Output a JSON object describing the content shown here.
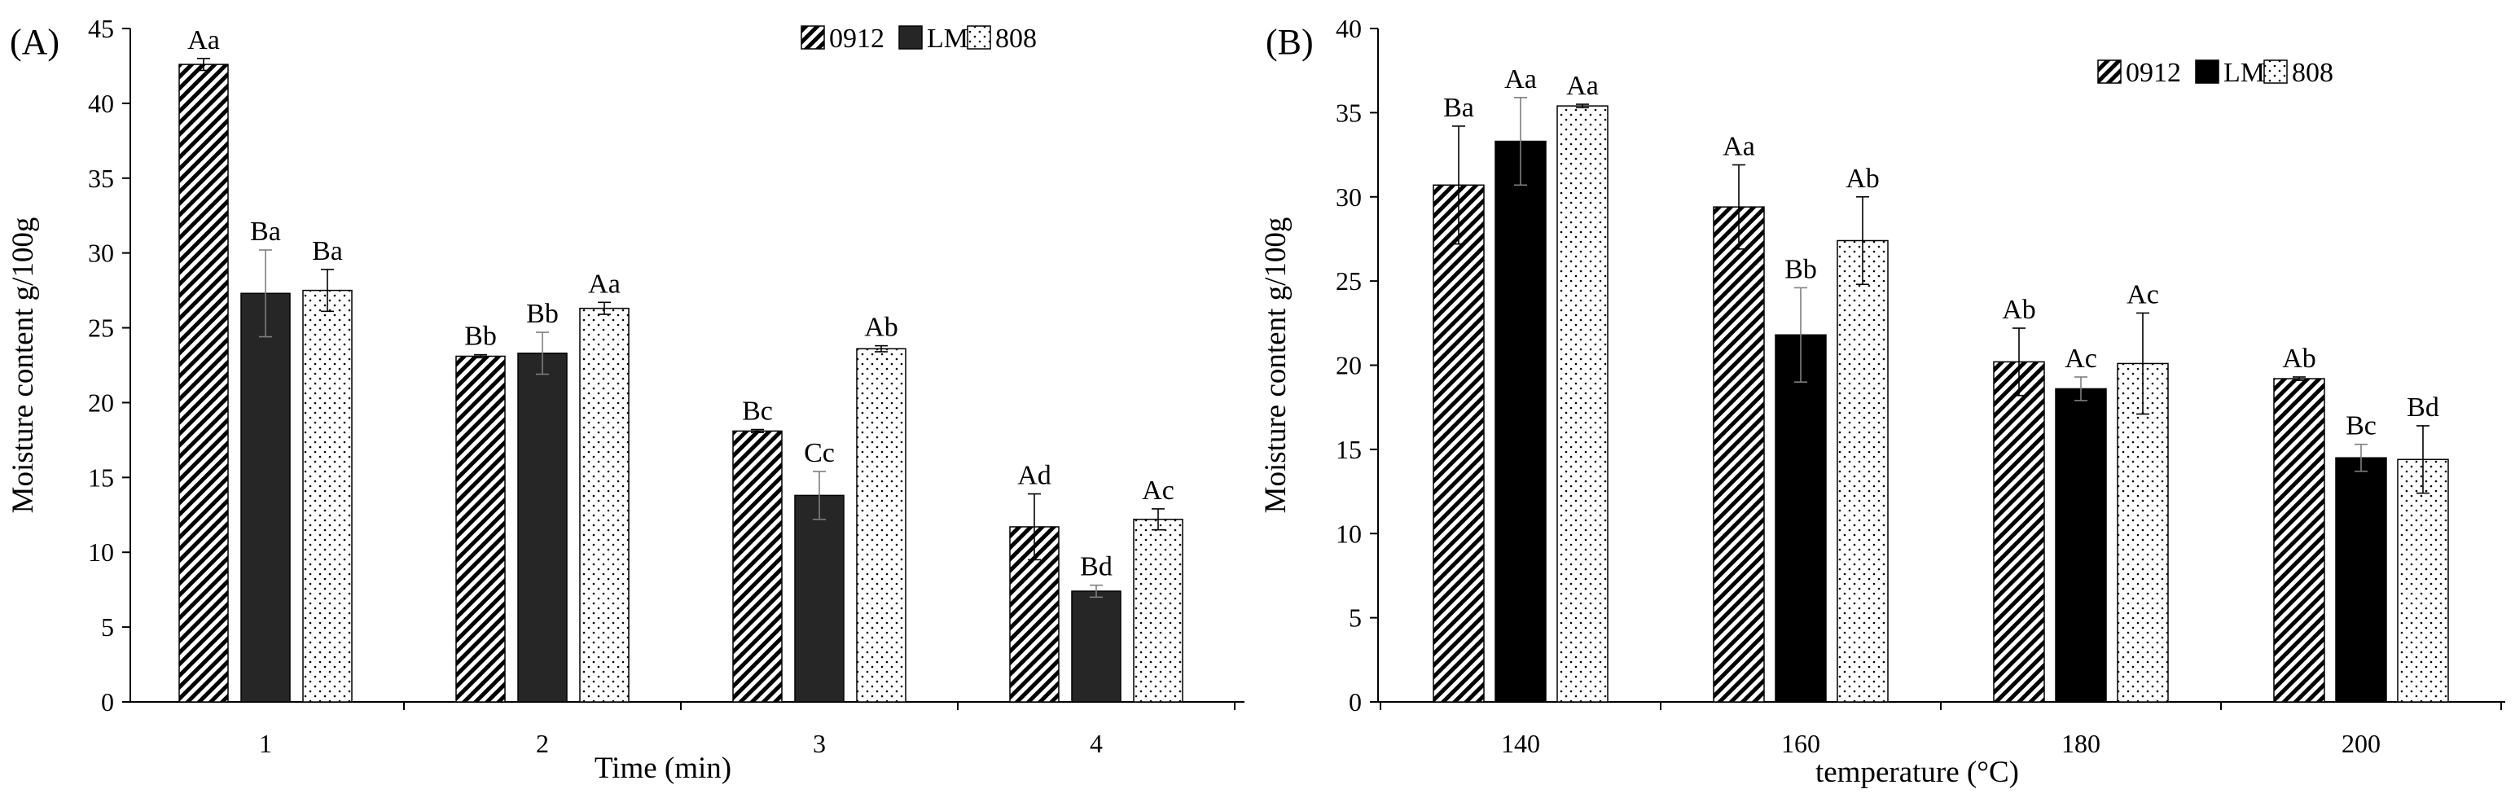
{
  "chart_data": [
    {
      "type": "bar",
      "panel_label": "(A)",
      "xlabel": "Time (min)",
      "ylabel": "Moisture content g/100g",
      "ylim": [
        0,
        45
      ],
      "yticks": [
        0,
        5,
        10,
        15,
        20,
        25,
        30,
        35,
        40,
        45
      ],
      "categories": [
        "1",
        "2",
        "3",
        "4"
      ],
      "legend_position": "top-right",
      "series": [
        {
          "name": "0912",
          "pattern": "hatch",
          "values": [
            42.6,
            23.1,
            18.1,
            11.7
          ],
          "errors": [
            0.4,
            0.1,
            0.1,
            2.2
          ],
          "labels": [
            "Aa",
            "Bb",
            "Bc",
            "Ad"
          ]
        },
        {
          "name": "LM",
          "pattern": "dark",
          "values": [
            27.3,
            23.3,
            13.8,
            7.4
          ],
          "errors": [
            2.9,
            1.4,
            1.6,
            0.4
          ],
          "labels": [
            "Ba",
            "Bb",
            "Cc",
            "Bd"
          ]
        },
        {
          "name": "808",
          "pattern": "dots",
          "values": [
            27.5,
            26.3,
            23.6,
            12.2
          ],
          "errors": [
            1.4,
            0.4,
            0.2,
            0.7
          ],
          "labels": [
            "Ba",
            "Aa",
            "Ab",
            "Ac"
          ]
        }
      ]
    },
    {
      "type": "bar",
      "panel_label": "(B)",
      "xlabel": "temperature (°C)",
      "ylabel": "Moisture content g/100g",
      "ylim": [
        0,
        40
      ],
      "yticks": [
        0,
        5,
        10,
        15,
        20,
        25,
        30,
        35,
        40
      ],
      "categories": [
        "140",
        "160",
        "180",
        "200"
      ],
      "legend_position": "top-right",
      "series": [
        {
          "name": "0912",
          "pattern": "hatch",
          "values": [
            30.7,
            29.4,
            20.2,
            19.2
          ],
          "errors": [
            3.5,
            2.5,
            2.0,
            0.1
          ],
          "labels": [
            "Ba",
            "Aa",
            "Ab",
            "Ab"
          ]
        },
        {
          "name": "LM",
          "pattern": "black",
          "values": [
            33.3,
            21.8,
            18.6,
            14.5
          ],
          "errors": [
            2.6,
            2.8,
            0.7,
            0.8
          ],
          "labels": [
            "Aa",
            "Bb",
            "Ac",
            "Bc"
          ]
        },
        {
          "name": "808",
          "pattern": "dots",
          "values": [
            35.4,
            27.4,
            20.1,
            14.4
          ],
          "errors": [
            0.1,
            2.6,
            3.0,
            2.0
          ],
          "labels": [
            "Aa",
            "Ab",
            "Ac",
            "Bd"
          ]
        }
      ]
    }
  ]
}
